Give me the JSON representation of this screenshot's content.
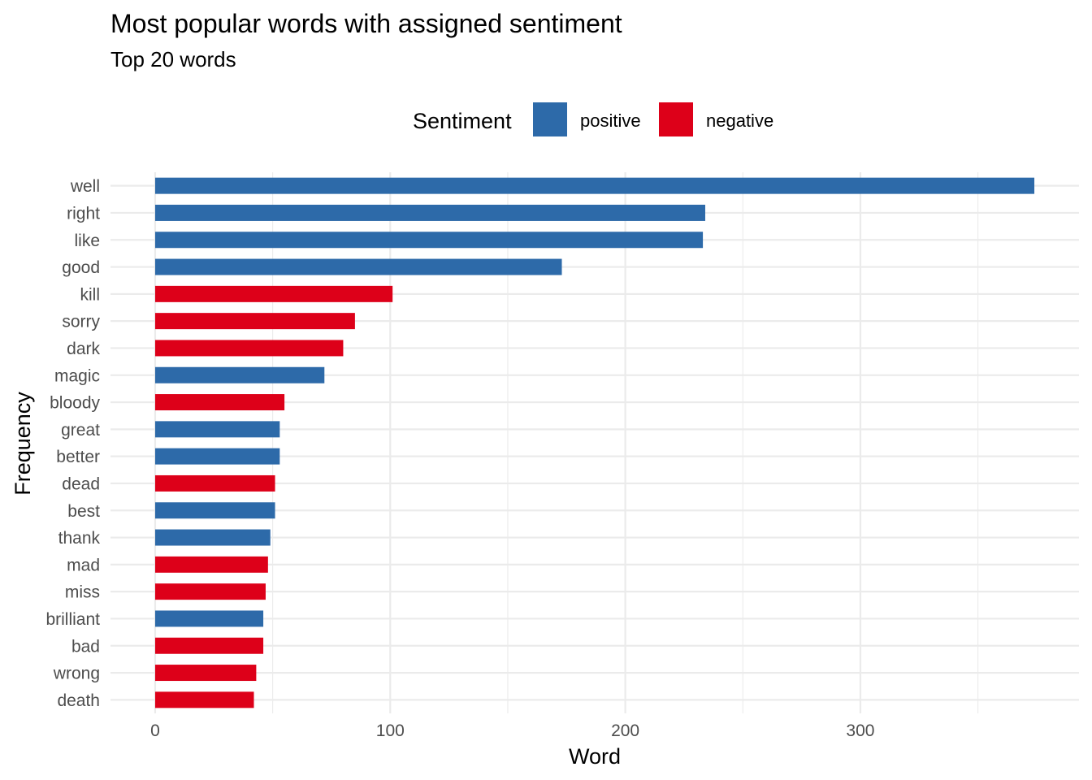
{
  "chart_data": {
    "type": "bar",
    "orientation": "horizontal",
    "title": "Most popular words with assigned sentiment",
    "subtitle": "Top 20 words",
    "xlabel": "Word",
    "ylabel": "Frequency",
    "xlim": [
      -19,
      393
    ],
    "x_ticks": [
      0,
      100,
      200,
      300
    ],
    "x_tick_labels": [
      "0",
      "100",
      "200",
      "300"
    ],
    "x_minor_ticks": [
      50,
      150,
      250,
      350
    ],
    "grid": true,
    "legend": {
      "title": "Sentiment",
      "position": "top",
      "entries": [
        {
          "label": "positive",
          "color": "#2d6aa9"
        },
        {
          "label": "negative",
          "color": "#dd0019"
        }
      ]
    },
    "categories": [
      "well",
      "right",
      "like",
      "good",
      "kill",
      "sorry",
      "dark",
      "magic",
      "bloody",
      "great",
      "better",
      "dead",
      "best",
      "thank",
      "mad",
      "miss",
      "brilliant",
      "bad",
      "wrong",
      "death"
    ],
    "values": [
      374,
      234,
      233,
      173,
      101,
      85,
      80,
      72,
      55,
      53,
      53,
      51,
      51,
      49,
      48,
      47,
      46,
      46,
      43,
      42
    ],
    "sentiment": [
      "positive",
      "positive",
      "positive",
      "positive",
      "negative",
      "negative",
      "negative",
      "positive",
      "negative",
      "positive",
      "positive",
      "negative",
      "positive",
      "positive",
      "negative",
      "negative",
      "positive",
      "negative",
      "negative",
      "negative"
    ]
  }
}
